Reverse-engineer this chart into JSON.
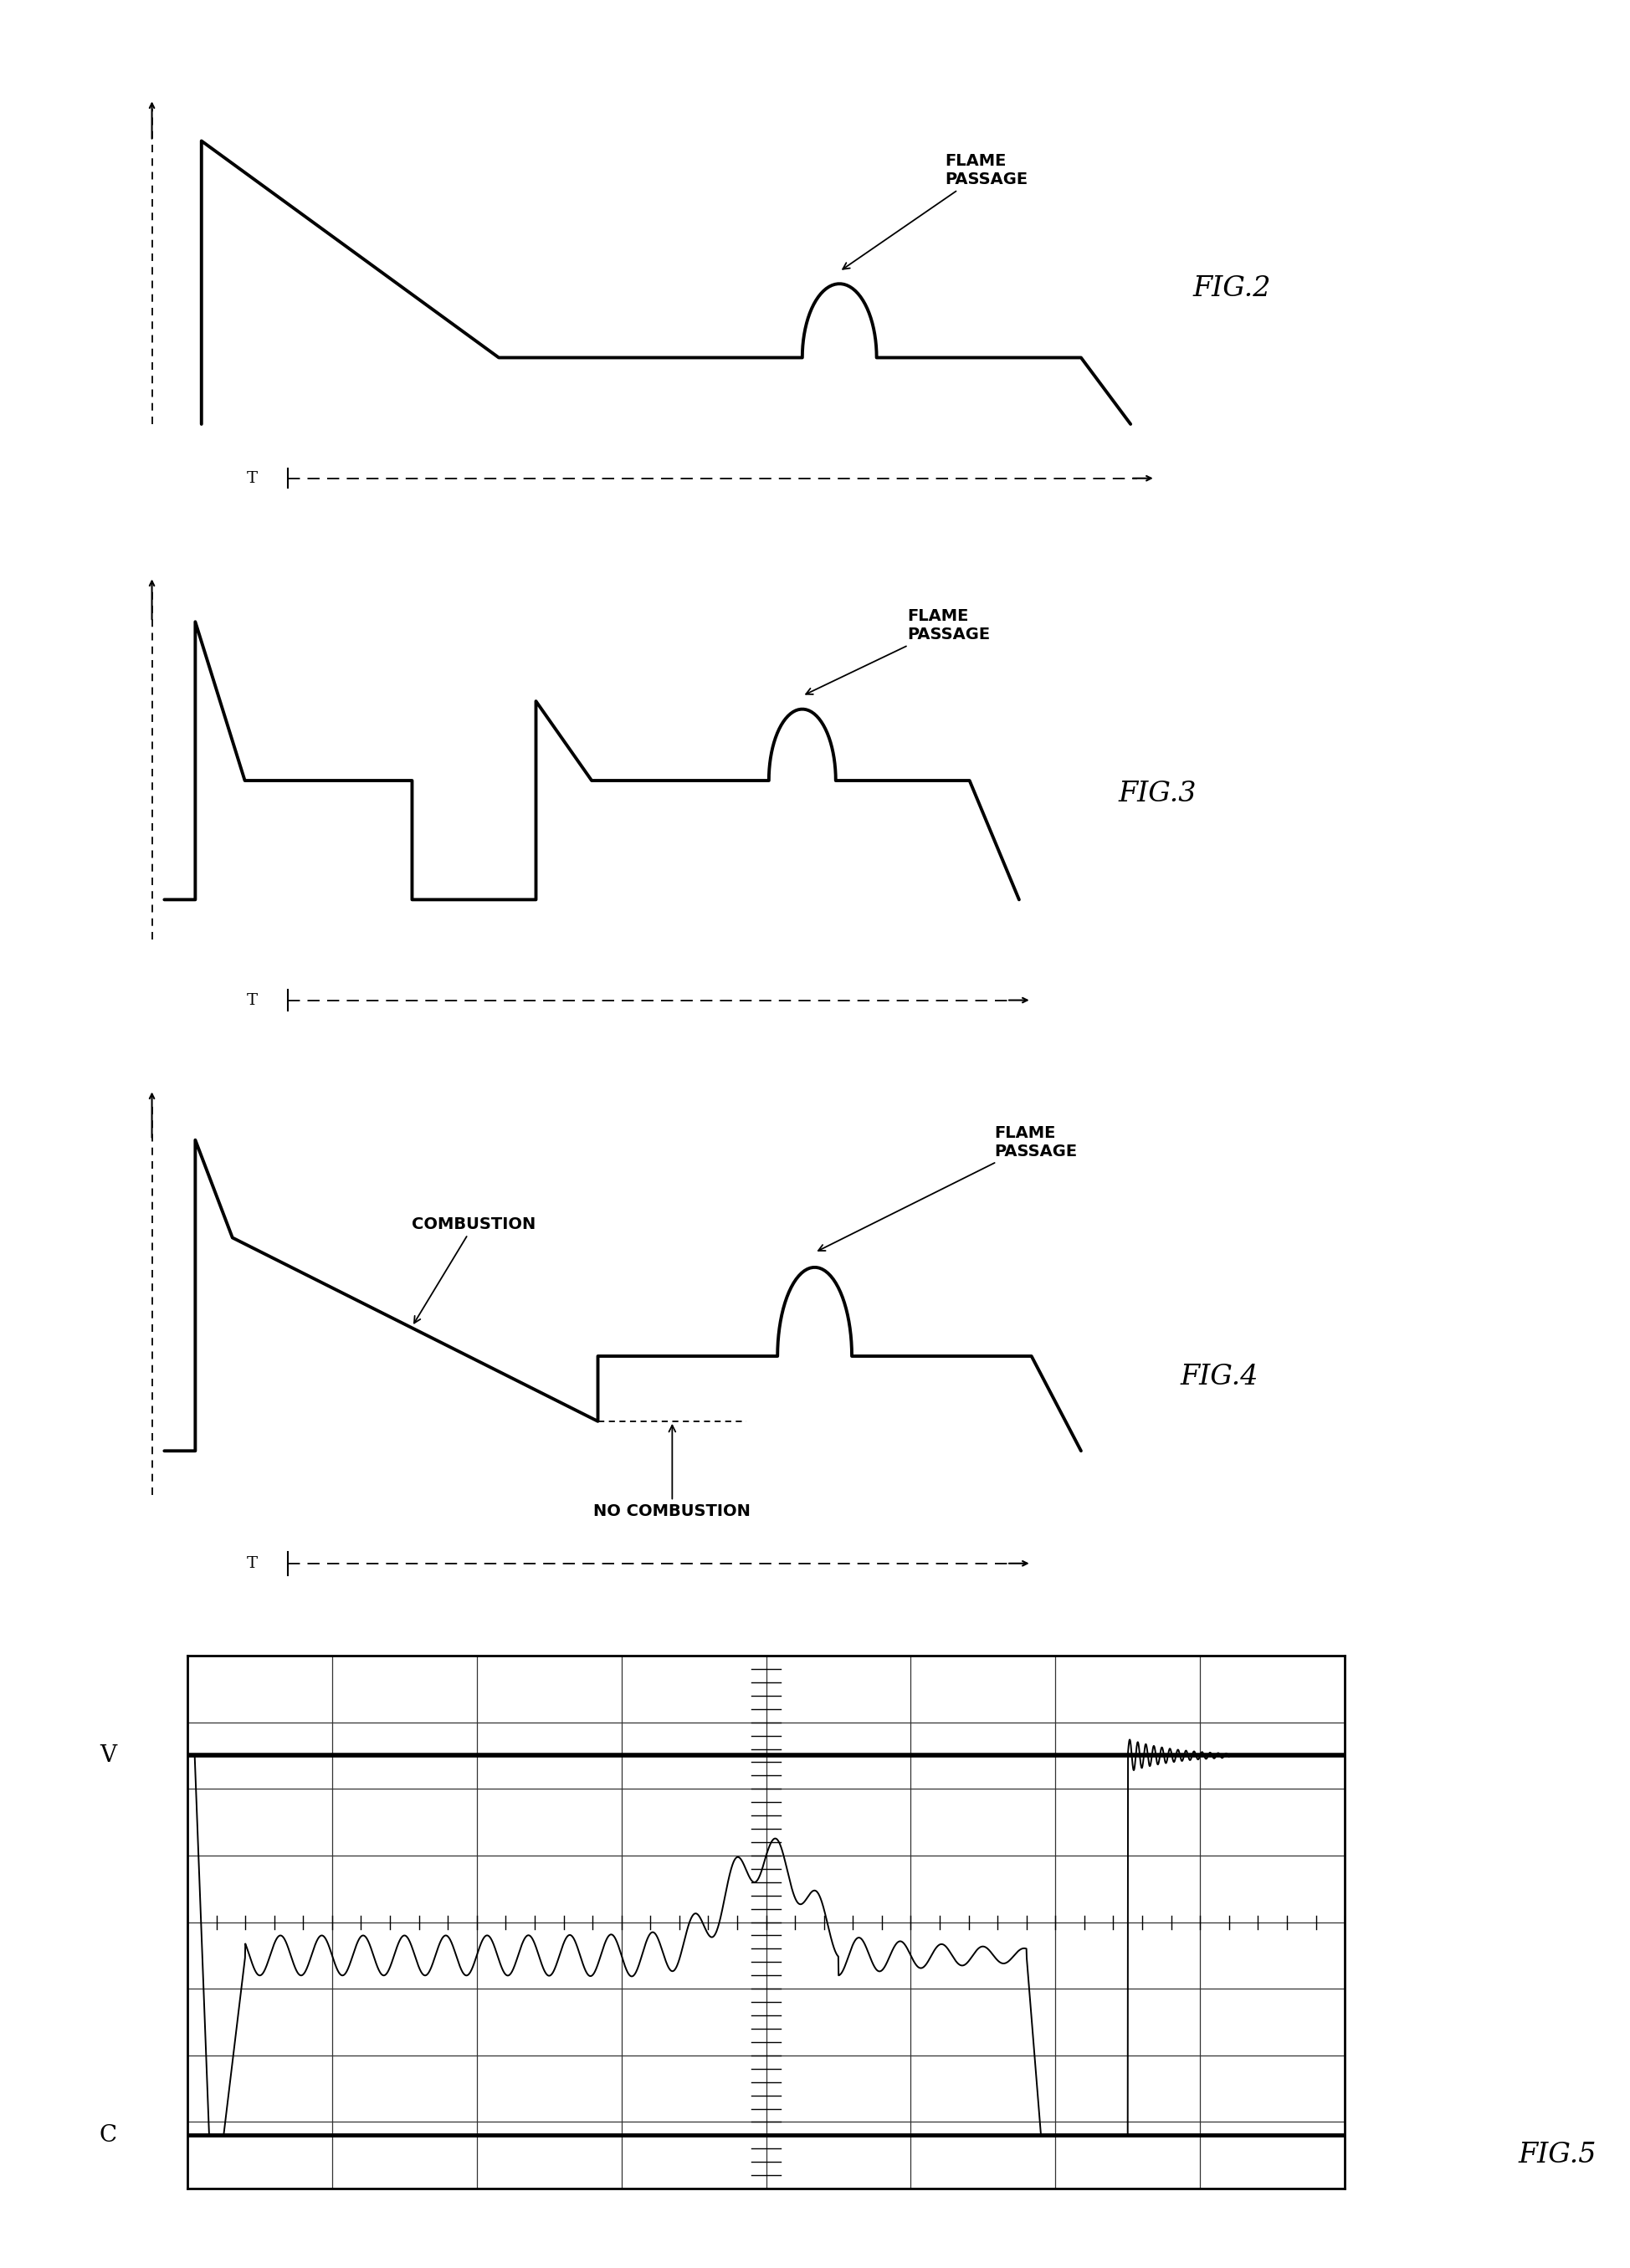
{
  "bg_color": "#ffffff",
  "fig_width": 19.48,
  "fig_height": 27.11,
  "fig2_label": "FIG.2",
  "fig3_label": "FIG.3",
  "fig4_label": "FIG.4",
  "fig5_label": "FIG.5",
  "flame_passage_label": "FLAME\nPASSAGE",
  "combustion_label": "COMBUSTION",
  "no_combustion_label": "NO COMBUSTION",
  "T_label": "T",
  "V_label": "V",
  "C_label": "C",
  "line_color": "#000000",
  "line_width": 2.8,
  "annotation_fontsize": 14,
  "fig_label_fontsize": 24,
  "axis_label_fontsize": 18
}
